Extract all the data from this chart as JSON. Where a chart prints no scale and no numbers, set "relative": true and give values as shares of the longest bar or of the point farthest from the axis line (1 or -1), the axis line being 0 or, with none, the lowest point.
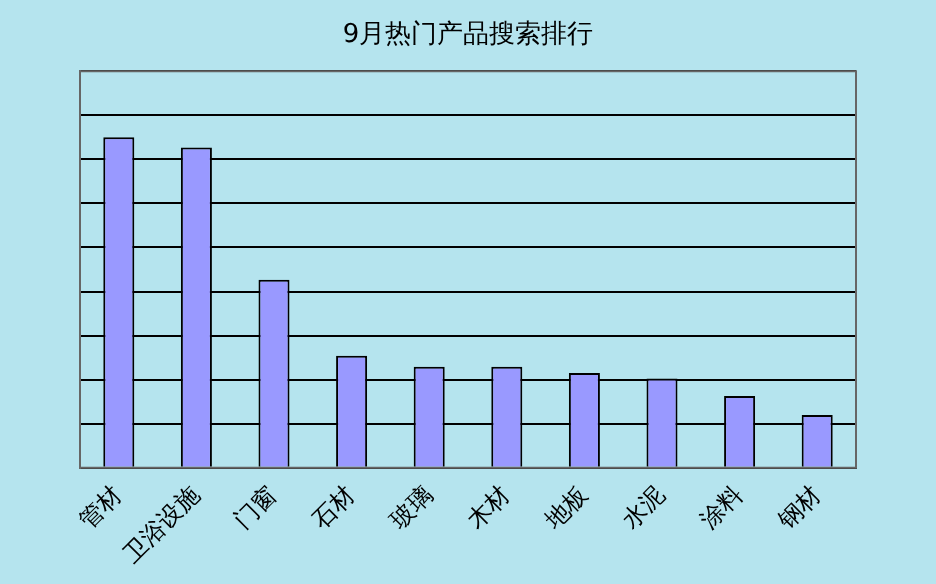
{
  "chart_data": {
    "type": "bar",
    "title": "9月热门产品搜索排行",
    "categories": [
      "管材",
      "卫浴设施",
      "门窗",
      "石材",
      "玻璃",
      "木材",
      "地板",
      "水泥",
      "涂料",
      "钢材"
    ],
    "values": [
      1,
      0.969,
      0.569,
      0.339,
      0.306,
      0.306,
      0.287,
      0.27,
      0.217,
      0.16
    ],
    "color": "#9999ff",
    "relative": true,
    "grid": "y",
    "legend": false
  }
}
